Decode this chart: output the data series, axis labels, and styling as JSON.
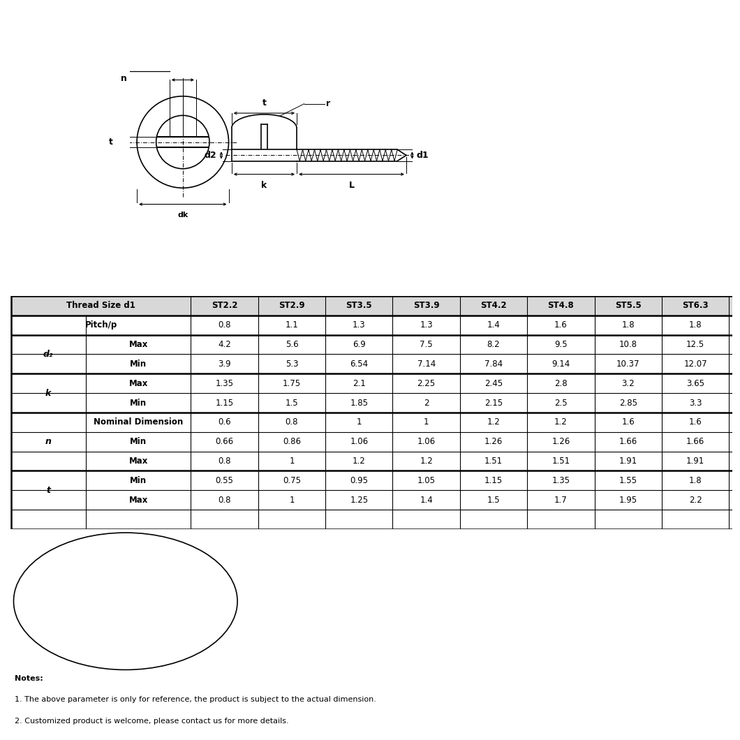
{
  "background_color": "#ffffff",
  "table_header_row": [
    "Thread Size d1",
    "ST2.2",
    "ST2.9",
    "ST3.5",
    "ST3.9",
    "ST4.2",
    "ST4.8",
    "ST5.5",
    "ST6.3"
  ],
  "table_rows": [
    [
      "Pitch/p",
      "",
      "0.8",
      "1.1",
      "1.3",
      "1.3",
      "1.4",
      "1.6",
      "1.8",
      "1.8"
    ],
    [
      "d2",
      "Max",
      "4.2",
      "5.6",
      "6.9",
      "7.5",
      "8.2",
      "9.5",
      "10.8",
      "12.5"
    ],
    [
      "",
      "Min",
      "3.9",
      "5.3",
      "6.54",
      "7.14",
      "7.84",
      "9.14",
      "10.37",
      "12.07"
    ],
    [
      "k",
      "Max",
      "1.35",
      "1.75",
      "2.1",
      "2.25",
      "2.45",
      "2.8",
      "3.2",
      "3.65"
    ],
    [
      "",
      "Min",
      "1.15",
      "1.5",
      "1.85",
      "2",
      "2.15",
      "2.5",
      "2.85",
      "3.3"
    ],
    [
      "n",
      "Nominal Dimension",
      "0.6",
      "0.8",
      "1",
      "1",
      "1.2",
      "1.2",
      "1.6",
      "1.6"
    ],
    [
      "",
      "Min",
      "0.66",
      "0.86",
      "1.06",
      "1.06",
      "1.26",
      "1.26",
      "1.66",
      "1.66"
    ],
    [
      "",
      "Max",
      "0.8",
      "1",
      "1.2",
      "1.2",
      "1.51",
      "1.51",
      "1.91",
      "1.91"
    ],
    [
      "t",
      "Min",
      "0.55",
      "0.75",
      "0.95",
      "1.05",
      "1.15",
      "1.35",
      "1.55",
      "1.8"
    ],
    [
      "",
      "Max",
      "0.8",
      "1",
      "1.25",
      "1.4",
      "1.5",
      "1.7",
      "1.95",
      "2.2"
    ]
  ],
  "group_labels": [
    "d₂",
    "k",
    "n",
    "t"
  ],
  "group_row_starts": [
    1,
    3,
    5,
    8
  ],
  "group_row_ends": [
    3,
    5,
    8,
    10
  ],
  "notes": [
    "Notes:",
    "1. The above parameter is only for reference, the product is subject to the actual dimension.",
    "2. Customized product is welcome, please contact us for more details."
  ]
}
